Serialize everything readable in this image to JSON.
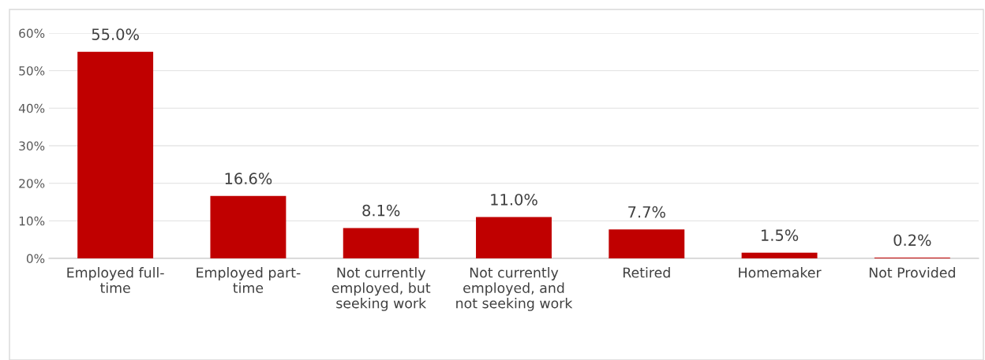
{
  "chart_data": {
    "type": "bar",
    "categories": [
      "Employed full-time",
      "Employed part-time",
      "Not currently employed, but seeking work",
      "Not currently employed, and not seeking work",
      "Retired",
      "Homemaker",
      "Not Provided"
    ],
    "values": [
      55.0,
      16.6,
      8.1,
      11.0,
      7.7,
      1.5,
      0.2
    ],
    "value_labels": [
      "55.0%",
      "16.6%",
      "8.1%",
      "11.0%",
      "7.7%",
      "1.5%",
      "0.2%"
    ],
    "color": "#c00000",
    "ylim": [
      0,
      60
    ],
    "yticks": [
      {
        "value": 0,
        "label": "0%"
      },
      {
        "value": 10,
        "label": "10%"
      },
      {
        "value": 20,
        "label": "20%"
      },
      {
        "value": 30,
        "label": "30%"
      },
      {
        "value": 40,
        "label": "40%"
      },
      {
        "value": 50,
        "label": "50%"
      },
      {
        "value": 60,
        "label": "60%"
      }
    ],
    "grid": "y",
    "legend": false
  }
}
